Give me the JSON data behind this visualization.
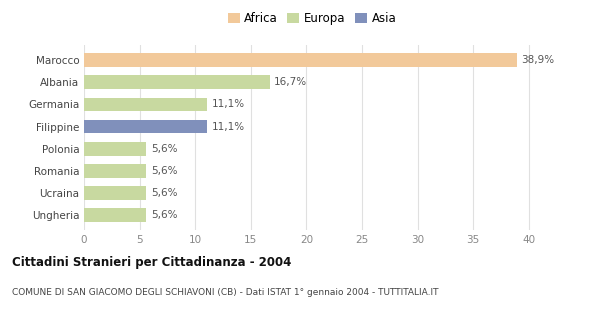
{
  "categories": [
    "Ungheria",
    "Ucraina",
    "Romania",
    "Polonia",
    "Filippine",
    "Germania",
    "Albania",
    "Marocco"
  ],
  "values": [
    5.6,
    5.6,
    5.6,
    5.6,
    11.1,
    11.1,
    16.7,
    38.9
  ],
  "labels": [
    "5,6%",
    "5,6%",
    "5,6%",
    "5,6%",
    "11,1%",
    "11,1%",
    "16,7%",
    "38,9%"
  ],
  "colors": [
    "#c8d9a0",
    "#c8d9a0",
    "#c8d9a0",
    "#c8d9a0",
    "#8090bb",
    "#c8d9a0",
    "#c8d9a0",
    "#f2c99a"
  ],
  "legend_labels": [
    "Africa",
    "Europa",
    "Asia"
  ],
  "legend_colors": [
    "#f2c99a",
    "#c8d9a0",
    "#8090bb"
  ],
  "xlim": [
    0,
    41
  ],
  "xticks": [
    0,
    5,
    10,
    15,
    20,
    25,
    30,
    35,
    40
  ],
  "title": "Cittadini Stranieri per Cittadinanza - 2004",
  "subtitle": "COMUNE DI SAN GIACOMO DEGLI SCHIAVONI (CB) - Dati ISTAT 1° gennaio 2004 - TUTTITALIA.IT",
  "bg_color": "#ffffff",
  "plot_bg_color": "#ffffff",
  "bar_height": 0.62
}
